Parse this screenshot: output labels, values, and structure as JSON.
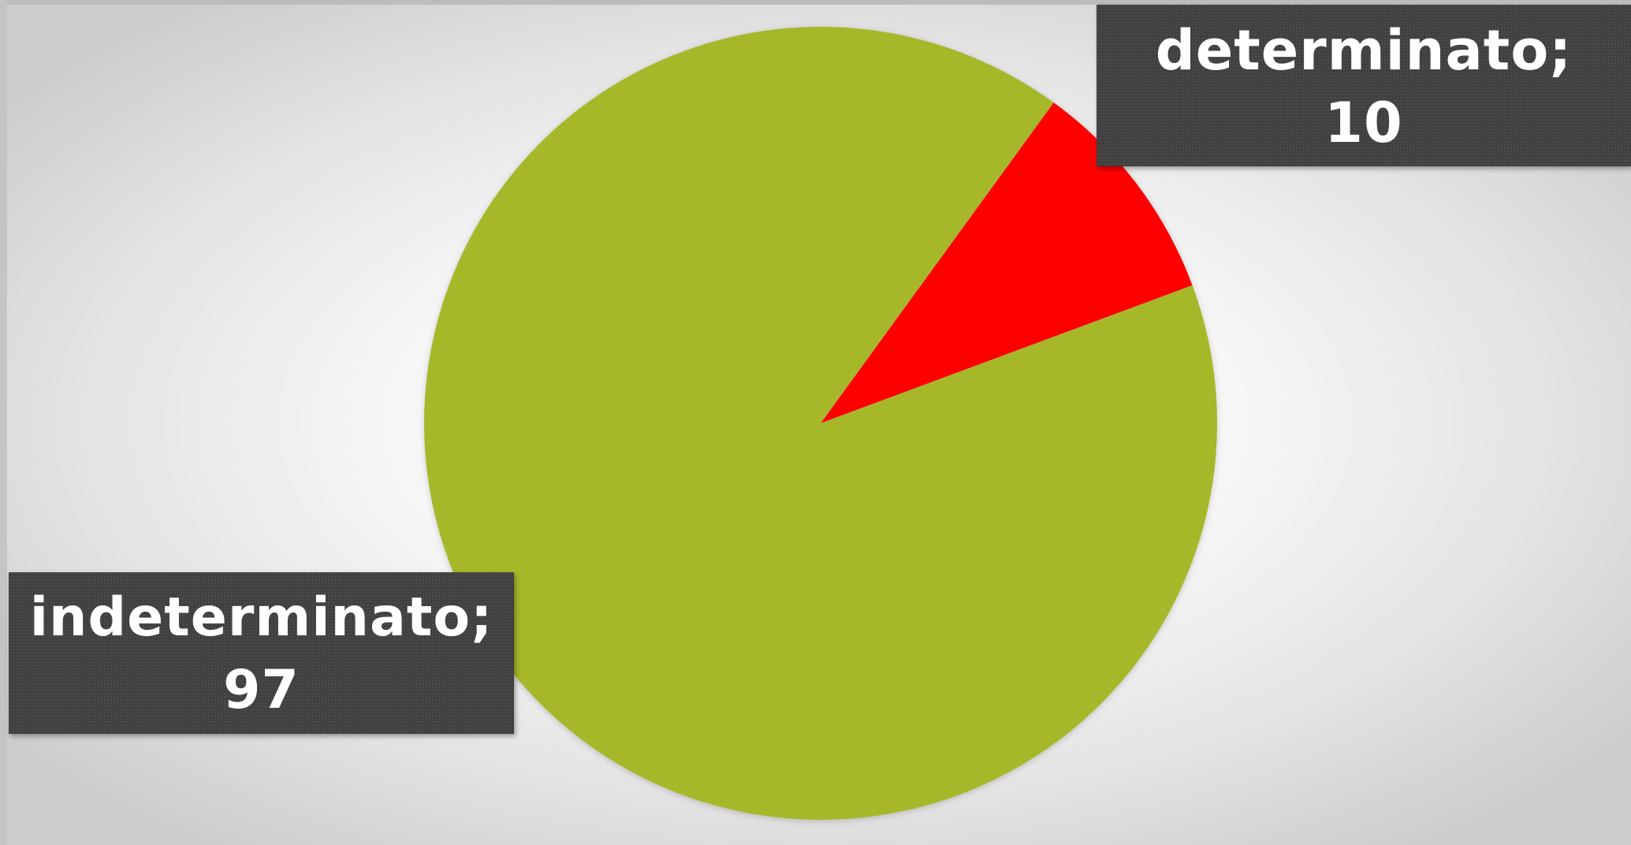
{
  "chart_data": {
    "type": "pie",
    "start_angle_deg": 36,
    "direction": "clockwise",
    "legend": "none",
    "colors": {
      "determinato": "#ff0000",
      "indeterminato": "#a6b82a",
      "label_box": "#404040",
      "label_text": "#ffffff"
    },
    "slices": [
      {
        "category": "determinato",
        "value": 10,
        "label_category": "determinato;",
        "label_value": "10",
        "color": "#ff0000"
      },
      {
        "category": "indeterminato",
        "value": 97,
        "label_category": "indeterminato;",
        "label_value": "97",
        "color": "#a6b82a"
      }
    ]
  }
}
